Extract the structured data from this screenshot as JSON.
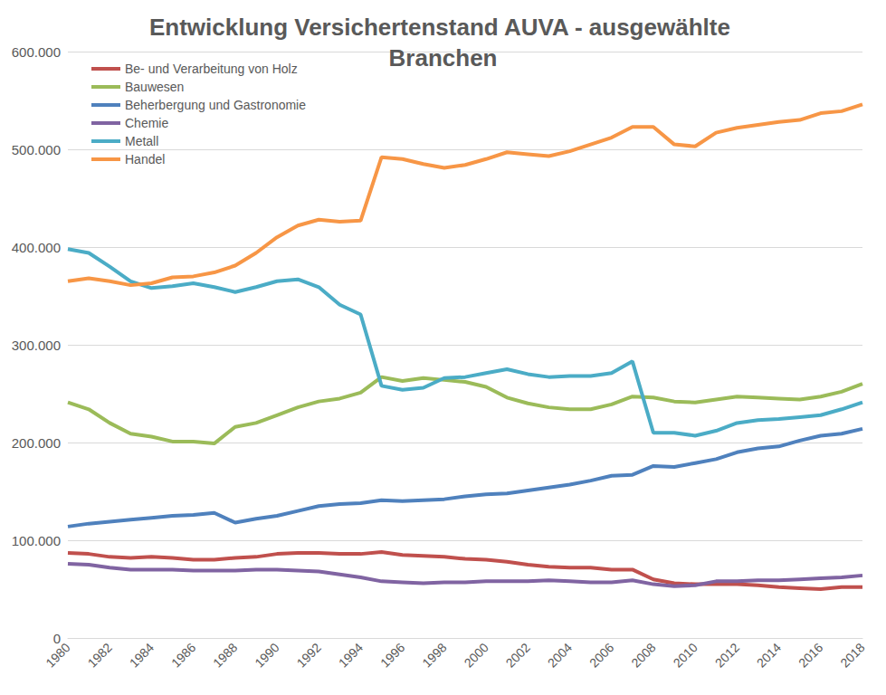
{
  "chart_data": {
    "type": "line",
    "title": "Entwicklung Versichertenstand AUVA - ausgewählte Branchen",
    "categories": [
      "1980",
      null,
      "1982",
      null,
      "1984",
      null,
      "1986",
      null,
      "1988",
      null,
      "1990",
      null,
      "1992",
      null,
      "1994",
      null,
      "1996",
      null,
      "1998",
      null,
      "2000",
      null,
      "2002",
      null,
      "2004",
      null,
      "2006",
      null,
      "2008",
      null,
      "2010",
      null,
      "2012",
      null,
      "2014",
      null,
      "2016",
      null,
      "2018"
    ],
    "series": [
      {
        "name": "Be- und Verarbeitung von Holz",
        "color": "#c0504d",
        "values": [
          87000,
          86000,
          83000,
          82000,
          83000,
          82000,
          80000,
          80000,
          82000,
          83000,
          86000,
          87000,
          87000,
          86000,
          86000,
          88000,
          85000,
          84000,
          83000,
          81000,
          80000,
          78000,
          75000,
          73000,
          72000,
          72000,
          70000,
          70000,
          60000,
          56000,
          55000,
          55000,
          55000,
          54000,
          52000,
          51000,
          50000,
          52000,
          52000
        ]
      },
      {
        "name": "Bauwesen",
        "color": "#9bbb59",
        "values": [
          241000,
          234000,
          220000,
          209000,
          206000,
          201000,
          201000,
          199000,
          216000,
          220000,
          228000,
          236000,
          242000,
          245000,
          251000,
          267000,
          263000,
          266000,
          264000,
          262000,
          257000,
          246000,
          240000,
          236000,
          234000,
          234000,
          239000,
          247000,
          246000,
          242000,
          241000,
          244000,
          247000,
          246000,
          245000,
          244000,
          247000,
          252000,
          260000
        ]
      },
      {
        "name": "Beherbergung und Gastronomie",
        "color": "#4f81bd",
        "values": [
          114000,
          117000,
          119000,
          121000,
          123000,
          125000,
          126000,
          128000,
          118000,
          122000,
          125000,
          130000,
          135000,
          137000,
          138000,
          141000,
          140000,
          141000,
          142000,
          145000,
          147000,
          148000,
          151000,
          154000,
          157000,
          161000,
          166000,
          167000,
          176000,
          175000,
          179000,
          183000,
          190000,
          194000,
          196000,
          202000,
          207000,
          209000,
          214000
        ]
      },
      {
        "name": "Chemie",
        "color": "#8064a2",
        "values": [
          76000,
          75000,
          72000,
          70000,
          70000,
          70000,
          69000,
          69000,
          69000,
          70000,
          70000,
          69000,
          68000,
          65000,
          62000,
          58000,
          57000,
          56000,
          57000,
          57000,
          58000,
          58000,
          58000,
          59000,
          58000,
          57000,
          57000,
          59000,
          55000,
          53000,
          54000,
          58000,
          58000,
          59000,
          59000,
          60000,
          61000,
          62000,
          64000
        ]
      },
      {
        "name": "Metall",
        "color": "#4bacc6",
        "values": [
          398000,
          394000,
          380000,
          365000,
          358000,
          360000,
          363000,
          359000,
          354000,
          359000,
          365000,
          367000,
          359000,
          341000,
          331000,
          258000,
          254000,
          256000,
          266000,
          267000,
          271000,
          275000,
          270000,
          267000,
          268000,
          268000,
          271000,
          283000,
          210000,
          210000,
          207000,
          212000,
          220000,
          223000,
          224000,
          226000,
          228000,
          234000,
          241000
        ]
      },
      {
        "name": "Handel",
        "color": "#f79646",
        "values": [
          365000,
          368000,
          365000,
          361000,
          363000,
          369000,
          370000,
          374000,
          381000,
          394000,
          410000,
          422000,
          428000,
          426000,
          427000,
          492000,
          490000,
          485000,
          481000,
          484000,
          490000,
          497000,
          495000,
          493000,
          498000,
          505000,
          512000,
          523000,
          523000,
          505000,
          503000,
          517000,
          522000,
          525000,
          528000,
          530000,
          537000,
          539000,
          546000
        ]
      }
    ],
    "ylim": [
      0,
      600000
    ],
    "yticks": [
      0,
      {
        "value": 100000,
        "label": "100.000"
      },
      {
        "value": 200000,
        "label": "200.000"
      },
      {
        "value": 300000,
        "label": "300.000"
      },
      {
        "value": 400000,
        "label": "400.000"
      },
      {
        "value": 500000,
        "label": "500.000"
      },
      {
        "value": 600000,
        "label": "600.000"
      }
    ],
    "grid": true,
    "legend": "top-left"
  }
}
